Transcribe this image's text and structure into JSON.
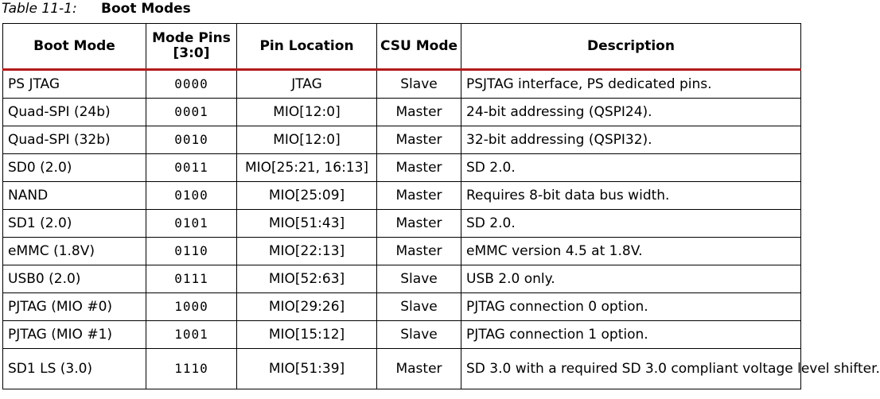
{
  "caption": {
    "number": "Table 11-1:",
    "title": "Boot Modes"
  },
  "table": {
    "headers": {
      "boot_mode": "Boot Mode",
      "mode_pins": "Mode Pins [3:0]",
      "pin_location": "Pin Location",
      "csu_mode": "CSU Mode",
      "description": "Description"
    },
    "rows": [
      {
        "boot_mode": "PS JTAG",
        "mode_pins": "0000",
        "pin_location": "JTAG",
        "csu_mode": "Slave",
        "description": "PSJTAG interface, PS dedicated pins."
      },
      {
        "boot_mode": "Quad-SPI (24b)",
        "mode_pins": "0001",
        "pin_location": "MIO[12:0]",
        "csu_mode": "Master",
        "description": "24-bit addressing (QSPI24)."
      },
      {
        "boot_mode": "Quad-SPI (32b)",
        "mode_pins": "0010",
        "pin_location": "MIO[12:0]",
        "csu_mode": "Master",
        "description": "32-bit addressing (QSPI32)."
      },
      {
        "boot_mode": "SD0 (2.0)",
        "mode_pins": "0011",
        "pin_location": "MIO[25:21, 16:13]",
        "csu_mode": "Master",
        "description": "SD 2.0."
      },
      {
        "boot_mode": "NAND",
        "mode_pins": "0100",
        "pin_location": "MIO[25:09]",
        "csu_mode": "Master",
        "description": "Requires 8-bit data bus width."
      },
      {
        "boot_mode": "SD1 (2.0)",
        "mode_pins": "0101",
        "pin_location": "MIO[51:43]",
        "csu_mode": "Master",
        "description": "SD 2.0."
      },
      {
        "boot_mode": "eMMC (1.8V)",
        "mode_pins": "0110",
        "pin_location": "MIO[22:13]",
        "csu_mode": "Master",
        "description": "eMMC version 4.5 at 1.8V."
      },
      {
        "boot_mode": "USB0 (2.0)",
        "mode_pins": "0111",
        "pin_location": "MIO[52:63]",
        "csu_mode": "Slave",
        "description": "USB 2.0 only."
      },
      {
        "boot_mode": "PJTAG (MIO #0)",
        "mode_pins": "1000",
        "pin_location": "MIO[29:26]",
        "csu_mode": "Slave",
        "description": "PJTAG connection 0 option."
      },
      {
        "boot_mode": "PJTAG (MIO #1)",
        "mode_pins": "1001",
        "pin_location": "MIO[15:12]",
        "csu_mode": "Slave",
        "description": "PJTAG connection 1 option."
      },
      {
        "boot_mode": "SD1 LS (3.0)",
        "mode_pins": "1110",
        "pin_location": "MIO[51:39]",
        "csu_mode": "Master",
        "description": "SD 3.0 with a required SD 3.0 compliant voltage level shifter."
      }
    ]
  }
}
